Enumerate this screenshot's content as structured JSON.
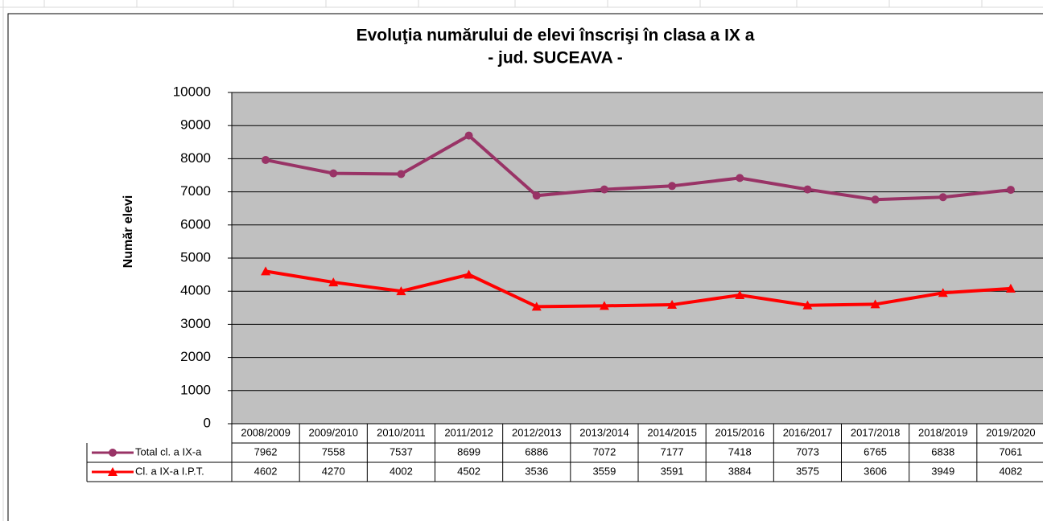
{
  "chart_data": {
    "type": "line",
    "title": "Evoluţia numărului de elevi înscrişi în clasa a IX a",
    "subtitle": "- jud. SUCEAVA -",
    "y_label": "Număr  elevi",
    "categories": [
      "2008/2009",
      "2009/2010",
      "2010/2011",
      "2011/2012",
      "2012/2013",
      "2013/2014",
      "2014/2015",
      "2015/2016",
      "2016/2017",
      "2017/2018",
      "2018/2019",
      "2019/2020"
    ],
    "series": [
      {
        "name": "Total cl. a IX-a",
        "color": "#993366",
        "marker": "circle",
        "values": [
          7962,
          7558,
          7537,
          8699,
          6886,
          7072,
          7177,
          7418,
          7073,
          6765,
          6838,
          7061
        ]
      },
      {
        "name": "Cl. a IX-a I.P.T.",
        "color": "#ff0000",
        "marker": "triangle",
        "values": [
          4602,
          4270,
          4002,
          4502,
          3536,
          3559,
          3591,
          3884,
          3575,
          3606,
          3949,
          4082
        ]
      }
    ],
    "ylim": [
      0,
      10000
    ],
    "yticks": [
      0,
      1000,
      2000,
      3000,
      4000,
      5000,
      6000,
      7000,
      8000,
      9000,
      10000
    ],
    "grid": true,
    "plot_background": "#c0c0c0",
    "data_table": true
  }
}
